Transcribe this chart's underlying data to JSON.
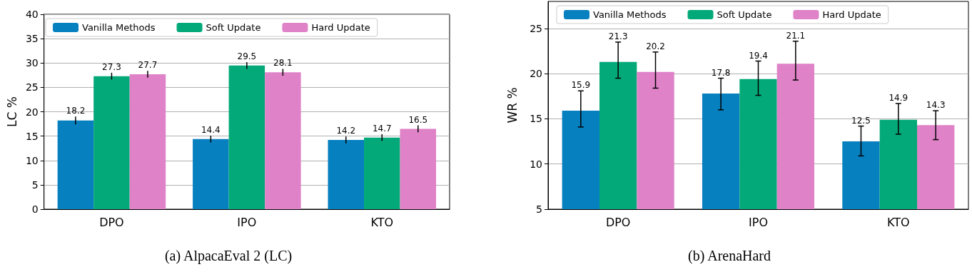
{
  "chart_data": [
    {
      "type": "bar",
      "title": "(a) AlpacaEval 2 (LC)",
      "ylabel": "LC %",
      "categories": [
        "DPO",
        "IPO",
        "KTO"
      ],
      "series": [
        {
          "name": "Vanilla Methods",
          "color": "#0780c0",
          "values": [
            18.2,
            14.4,
            14.2
          ],
          "errors": [
            0.8,
            0.7,
            0.7
          ]
        },
        {
          "name": "Soft Update",
          "color": "#03a978",
          "values": [
            27.3,
            29.5,
            14.7
          ],
          "errors": [
            0.7,
            0.7,
            0.7
          ]
        },
        {
          "name": "Hard Update",
          "color": "#df82c7",
          "values": [
            27.7,
            28.1,
            16.5
          ],
          "errors": [
            0.7,
            0.7,
            0.7
          ]
        }
      ],
      "ylim": [
        0,
        40
      ],
      "yticks": [
        0,
        5,
        10,
        15,
        20,
        25,
        30,
        35,
        40
      ],
      "grid": "y",
      "legend": "top",
      "data_labels": true
    },
    {
      "type": "bar",
      "title": "(b) ArenaHard",
      "ylabel": "WR %",
      "categories": [
        "DPO",
        "IPO",
        "KTO"
      ],
      "series": [
        {
          "name": "Vanilla Methods",
          "color": "#0780c0",
          "values": [
            15.9,
            17.8,
            12.5
          ],
          "errors": [
            [
              14.1,
              18.1
            ],
            [
              16.0,
              19.5
            ],
            [
              10.9,
              14.2
            ]
          ]
        },
        {
          "name": "Soft Update",
          "color": "#03a978",
          "values": [
            21.3,
            19.4,
            14.9
          ],
          "errors": [
            [
              19.5,
              23.5
            ],
            [
              17.6,
              21.4
            ],
            [
              13.3,
              16.7
            ]
          ]
        },
        {
          "name": "Hard Update",
          "color": "#df82c7",
          "values": [
            20.2,
            21.1,
            14.3
          ],
          "errors": [
            [
              18.4,
              22.4
            ],
            [
              19.3,
              23.6
            ],
            [
              12.7,
              15.9
            ]
          ]
        }
      ],
      "ylim": [
        5,
        28
      ],
      "yticks": [
        5,
        10,
        15,
        20,
        25
      ],
      "grid": "y",
      "legend": "top",
      "data_labels": true
    }
  ]
}
